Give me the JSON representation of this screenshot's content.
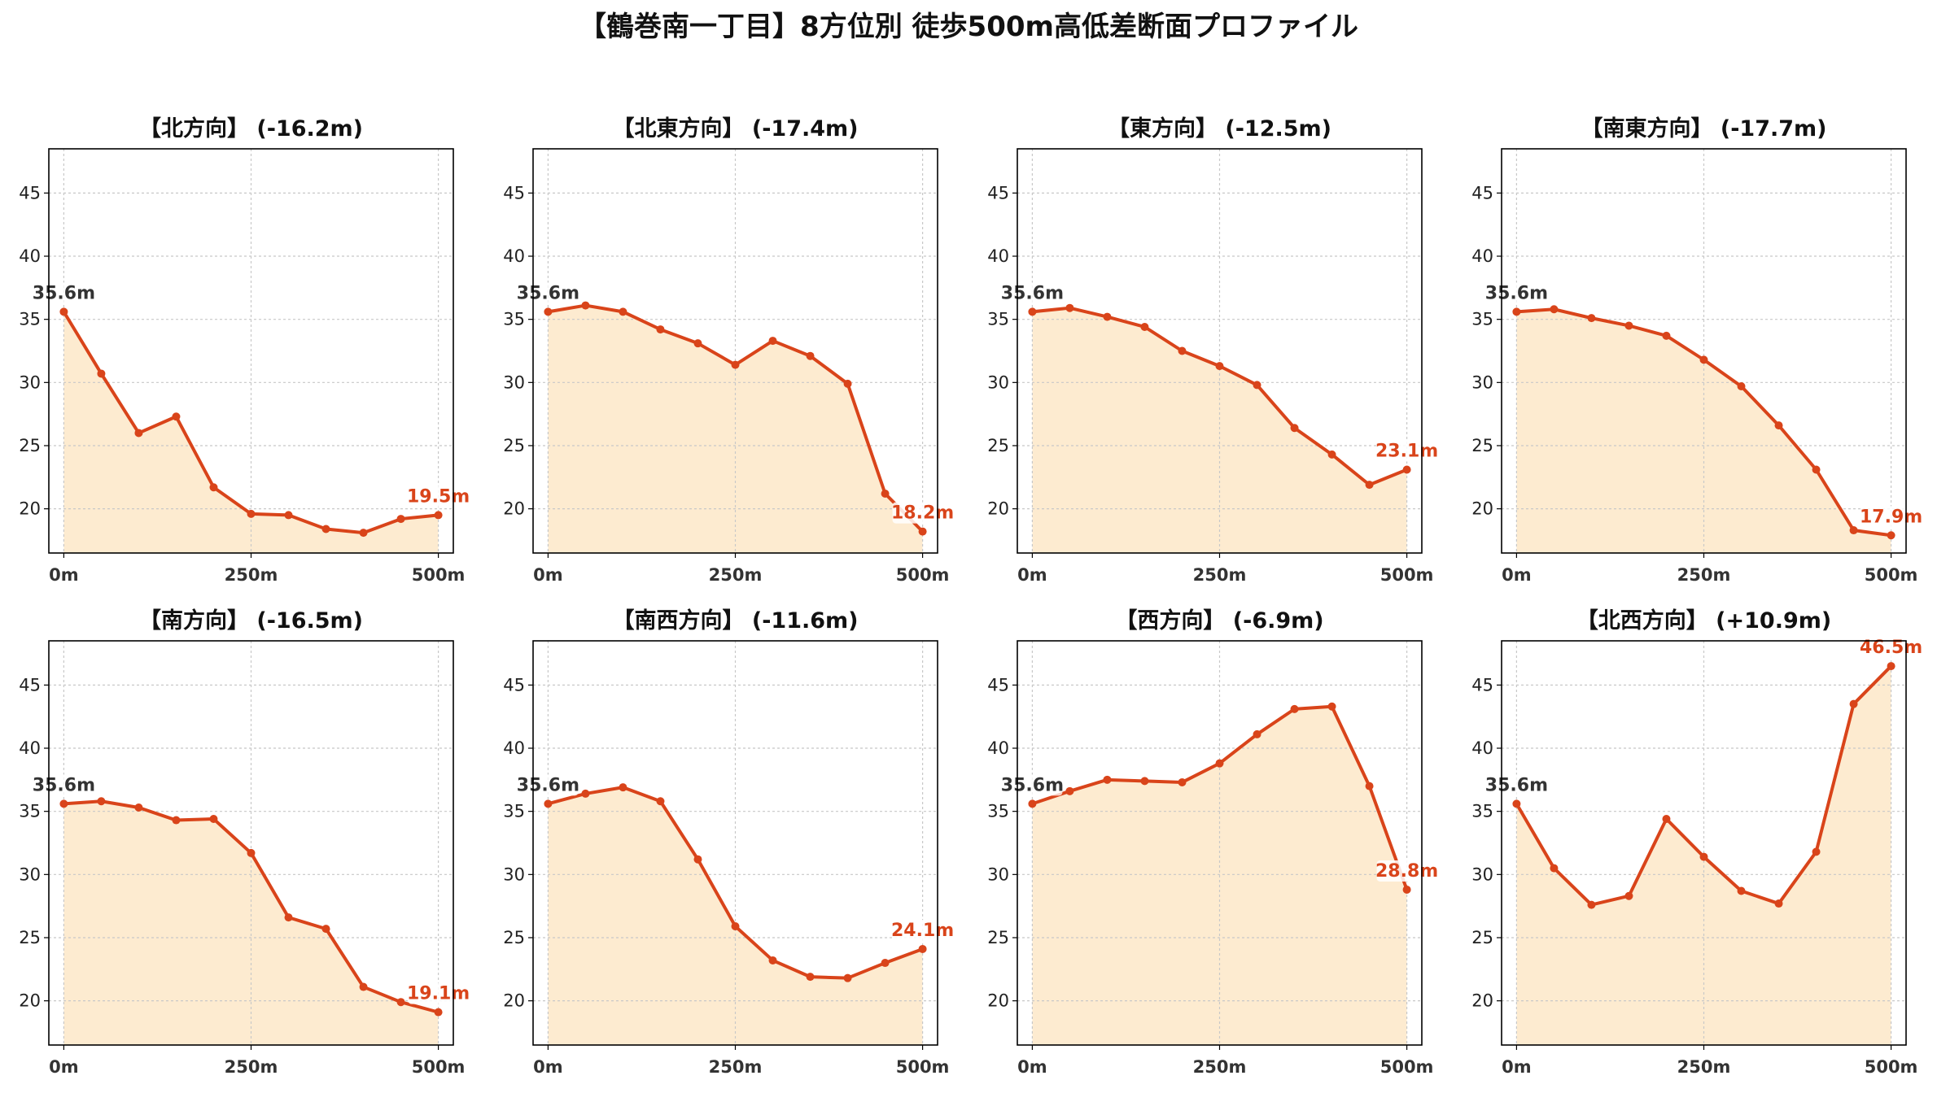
{
  "title": "【鶴巻南一丁目】8方位別 徒歩500m高低差断面プロファイル",
  "colors": {
    "line": "#d9441a",
    "fill": "#fdebd0",
    "grid": "#c8c8c8",
    "start_label": "#333333",
    "end_label": "#d9441a"
  },
  "chart_data": [
    {
      "type": "area",
      "title": "【北方向】 (-16.2m)",
      "x": [
        0,
        50,
        100,
        150,
        200,
        250,
        300,
        350,
        400,
        450,
        500
      ],
      "y": [
        35.6,
        30.7,
        26.0,
        27.3,
        21.7,
        19.6,
        19.5,
        18.4,
        18.1,
        19.2,
        19.5
      ],
      "start_label": "35.6m",
      "end_label": "19.5m",
      "xticks": [
        "0m",
        "250m",
        "500m"
      ],
      "yticks": [
        "20",
        "25",
        "30",
        "35",
        "40",
        "45"
      ],
      "xlim": [
        -20,
        520
      ],
      "ylim": [
        16.5,
        48.5
      ],
      "grid": true
    },
    {
      "type": "area",
      "title": "【北東方向】 (-17.4m)",
      "x": [
        0,
        50,
        100,
        150,
        200,
        250,
        300,
        350,
        400,
        450,
        500
      ],
      "y": [
        35.6,
        36.1,
        35.6,
        34.2,
        33.1,
        31.4,
        33.3,
        32.1,
        29.9,
        21.2,
        18.2
      ],
      "start_label": "35.6m",
      "end_label": "18.2m",
      "xticks": [
        "0m",
        "250m",
        "500m"
      ],
      "yticks": [
        "20",
        "25",
        "30",
        "35",
        "40",
        "45"
      ],
      "xlim": [
        -20,
        520
      ],
      "ylim": [
        16.5,
        48.5
      ],
      "grid": true
    },
    {
      "type": "area",
      "title": "【東方向】 (-12.5m)",
      "x": [
        0,
        50,
        100,
        150,
        200,
        250,
        300,
        350,
        400,
        450,
        500
      ],
      "y": [
        35.6,
        35.9,
        35.2,
        34.4,
        32.5,
        31.3,
        29.8,
        26.4,
        24.3,
        21.9,
        23.1
      ],
      "start_label": "35.6m",
      "end_label": "23.1m",
      "xticks": [
        "0m",
        "250m",
        "500m"
      ],
      "yticks": [
        "20",
        "25",
        "30",
        "35",
        "40",
        "45"
      ],
      "xlim": [
        -20,
        520
      ],
      "ylim": [
        16.5,
        48.5
      ],
      "grid": true
    },
    {
      "type": "area",
      "title": "【南東方向】 (-17.7m)",
      "x": [
        0,
        50,
        100,
        150,
        200,
        250,
        300,
        350,
        400,
        450,
        500
      ],
      "y": [
        35.6,
        35.8,
        35.1,
        34.5,
        33.7,
        31.8,
        29.7,
        26.6,
        23.1,
        18.3,
        17.9
      ],
      "start_label": "35.6m",
      "end_label": "17.9m",
      "xticks": [
        "0m",
        "250m",
        "500m"
      ],
      "yticks": [
        "20",
        "25",
        "30",
        "35",
        "40",
        "45"
      ],
      "xlim": [
        -20,
        520
      ],
      "ylim": [
        16.5,
        48.5
      ],
      "grid": true
    },
    {
      "type": "area",
      "title": "【南方向】 (-16.5m)",
      "x": [
        0,
        50,
        100,
        150,
        200,
        250,
        300,
        350,
        400,
        450,
        500
      ],
      "y": [
        35.6,
        35.8,
        35.3,
        34.3,
        34.4,
        31.7,
        26.6,
        25.7,
        21.1,
        19.9,
        19.1
      ],
      "start_label": "35.6m",
      "end_label": "19.1m",
      "xticks": [
        "0m",
        "250m",
        "500m"
      ],
      "yticks": [
        "20",
        "25",
        "30",
        "35",
        "40",
        "45"
      ],
      "xlim": [
        -20,
        520
      ],
      "ylim": [
        16.5,
        48.5
      ],
      "grid": true
    },
    {
      "type": "area",
      "title": "【南西方向】 (-11.6m)",
      "x": [
        0,
        50,
        100,
        150,
        200,
        250,
        300,
        350,
        400,
        450,
        500
      ],
      "y": [
        35.6,
        36.4,
        36.9,
        35.8,
        31.2,
        25.9,
        23.2,
        21.9,
        21.8,
        23.0,
        24.1
      ],
      "start_label": "35.6m",
      "end_label": "24.1m",
      "xticks": [
        "0m",
        "250m",
        "500m"
      ],
      "yticks": [
        "20",
        "25",
        "30",
        "35",
        "40",
        "45"
      ],
      "xlim": [
        -20,
        520
      ],
      "ylim": [
        16.5,
        48.5
      ],
      "grid": true
    },
    {
      "type": "area",
      "title": "【西方向】 (-6.9m)",
      "x": [
        0,
        50,
        100,
        150,
        200,
        250,
        300,
        350,
        400,
        450,
        500
      ],
      "y": [
        35.6,
        36.6,
        37.5,
        37.4,
        37.3,
        38.8,
        41.1,
        43.1,
        43.3,
        37.0,
        28.8
      ],
      "start_label": "35.6m",
      "end_label": "28.8m",
      "xticks": [
        "0m",
        "250m",
        "500m"
      ],
      "yticks": [
        "20",
        "25",
        "30",
        "35",
        "40",
        "45"
      ],
      "xlim": [
        -20,
        520
      ],
      "ylim": [
        16.5,
        48.5
      ],
      "grid": true
    },
    {
      "type": "area",
      "title": "【北西方向】 (+10.9m)",
      "x": [
        0,
        50,
        100,
        150,
        200,
        250,
        300,
        350,
        400,
        450,
        500
      ],
      "y": [
        35.6,
        30.5,
        27.6,
        28.3,
        34.4,
        31.4,
        28.7,
        27.7,
        31.8,
        43.5,
        46.5
      ],
      "start_label": "35.6m",
      "end_label": "46.5m",
      "xticks": [
        "0m",
        "250m",
        "500m"
      ],
      "yticks": [
        "20",
        "25",
        "30",
        "35",
        "40",
        "45"
      ],
      "xlim": [
        -20,
        520
      ],
      "ylim": [
        16.5,
        48.5
      ],
      "grid": true
    }
  ]
}
